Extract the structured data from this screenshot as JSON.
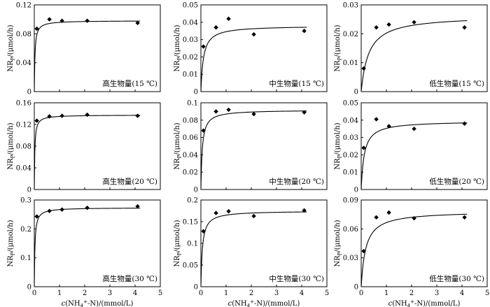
{
  "chart_data": [
    {
      "type": "scatter",
      "label": "高生物量(15 ℃)",
      "ylabel": "NRP/(μmol/h)",
      "xlabel": "",
      "xlim": [
        0,
        5
      ],
      "ylim": [
        0,
        0.12
      ],
      "yticks": [
        "0",
        "0.04",
        "0.08",
        "0.12"
      ],
      "xticks": [
        "0",
        "1",
        "2",
        "3",
        "4",
        "5"
      ],
      "points": [
        [
          0.1,
          0.087
        ],
        [
          0.6,
          0.1
        ],
        [
          1.1,
          0.098
        ],
        [
          2.1,
          0.098
        ],
        [
          4.1,
          0.095
        ]
      ],
      "fit": {
        "vmax": 0.0982,
        "km": 0.025
      }
    },
    {
      "type": "scatter",
      "label": "中生物量(15 ℃)",
      "ylabel": "NRP/(μmol/h)",
      "xlabel": "",
      "xlim": [
        0,
        5
      ],
      "ylim": [
        0,
        0.05
      ],
      "yticks": [
        "0",
        "0.01",
        "0.02",
        "0.03",
        "0.04",
        "0.05"
      ],
      "xticks": [
        "0",
        "1",
        "2",
        "3",
        "4",
        "5"
      ],
      "points": [
        [
          0.1,
          0.026
        ],
        [
          0.6,
          0.037
        ],
        [
          1.1,
          0.042
        ],
        [
          2.1,
          0.033
        ],
        [
          4.1,
          0.035
        ]
      ],
      "fit": {
        "vmax": 0.038,
        "km": 0.1
      }
    },
    {
      "type": "scatter",
      "label": "低生物量(15 ℃)",
      "ylabel": "NRP/(μmol/h)",
      "xlabel": "",
      "xlim": [
        0,
        5
      ],
      "ylim": [
        0,
        0.03
      ],
      "yticks": [
        "0",
        "0.01",
        "0.02",
        "0.03"
      ],
      "xticks": [
        "0",
        "1",
        "2",
        "3",
        "4",
        "5"
      ],
      "points": [
        [
          0.1,
          0.008
        ],
        [
          0.6,
          0.0222
        ],
        [
          1.1,
          0.0232
        ],
        [
          2.1,
          0.024
        ],
        [
          4.1,
          0.0222
        ]
      ],
      "fit": {
        "vmax": 0.0263,
        "km": 0.3
      }
    },
    {
      "type": "scatter",
      "label": "高生物量(20 ℃)",
      "ylabel": "NRP/(μmol/h)",
      "xlabel": "",
      "xlim": [
        0,
        5
      ],
      "ylim": [
        0,
        0.16
      ],
      "yticks": [
        "0",
        "0.04",
        "0.08",
        "0.12",
        "0.16"
      ],
      "xticks": [
        "0",
        "1",
        "2",
        "3",
        "4",
        "5"
      ],
      "points": [
        [
          0.1,
          0.127
        ],
        [
          0.6,
          0.135
        ],
        [
          1.1,
          0.136
        ],
        [
          2.1,
          0.138
        ],
        [
          4.1,
          0.136
        ]
      ],
      "fit": {
        "vmax": 0.1375,
        "km": 0.02
      }
    },
    {
      "type": "scatter",
      "label": "中生物量(20 ℃)",
      "ylabel": "NRP/(μmol/h)",
      "xlabel": "",
      "xlim": [
        0,
        5
      ],
      "ylim": [
        0,
        0.1
      ],
      "yticks": [
        "0",
        "0.02",
        "0.04",
        "0.06",
        "0.08",
        "0.1"
      ],
      "xticks": [
        "0",
        "1",
        "2",
        "3",
        "4",
        "5"
      ],
      "points": [
        [
          0.1,
          0.068
        ],
        [
          0.6,
          0.09
        ],
        [
          1.1,
          0.092
        ],
        [
          2.1,
          0.087
        ],
        [
          4.1,
          0.089
        ]
      ],
      "fit": {
        "vmax": 0.0918,
        "km": 0.055
      }
    },
    {
      "type": "scatter",
      "label": "低生物量(20 ℃)",
      "ylabel": "NRP/(μmol/h)",
      "xlabel": "",
      "xlim": [
        0,
        5
      ],
      "ylim": [
        0,
        0.05
      ],
      "yticks": [
        "0",
        "0.01",
        "0.02",
        "0.03",
        "0.04",
        "0.05"
      ],
      "xticks": [
        "0",
        "1",
        "2",
        "3",
        "4",
        "5"
      ],
      "points": [
        [
          0.1,
          0.024
        ],
        [
          0.6,
          0.0405
        ],
        [
          1.1,
          0.0365
        ],
        [
          2.1,
          0.035
        ],
        [
          4.1,
          0.038
        ]
      ],
      "fit": {
        "vmax": 0.0395,
        "km": 0.12
      }
    },
    {
      "type": "scatter",
      "label": "高生物量(30 ℃)",
      "ylabel": "NRP/(μmol/h)",
      "xlabel": "c(NH4+-N)/(mmol/L)",
      "xlim": [
        0,
        5
      ],
      "ylim": [
        0,
        0.3
      ],
      "yticks": [
        "0",
        "0.1",
        "0.2",
        "0.3"
      ],
      "xticks": [
        "0",
        "1",
        "2",
        "3",
        "4",
        "5"
      ],
      "points": [
        [
          0.1,
          0.243
        ],
        [
          0.6,
          0.262
        ],
        [
          1.1,
          0.267
        ],
        [
          2.1,
          0.273
        ],
        [
          4.1,
          0.278
        ]
      ],
      "fit": {
        "vmax": 0.2735,
        "km": 0.025
      }
    },
    {
      "type": "scatter",
      "label": "中生物量(30 ℃)",
      "ylabel": "NRP/(μmol/h)",
      "xlabel": "c(NH4+-N)/(mmol/L)",
      "xlim": [
        0,
        5
      ],
      "ylim": [
        0,
        0.2
      ],
      "yticks": [
        "0",
        "0.05",
        "0.1",
        "0.15",
        "0.2"
      ],
      "xticks": [
        "0",
        "1",
        "2",
        "3",
        "4",
        "5"
      ],
      "points": [
        [
          0.1,
          0.128
        ],
        [
          0.6,
          0.17
        ],
        [
          1.1,
          0.174
        ],
        [
          2.1,
          0.163
        ],
        [
          4.1,
          0.176
        ]
      ],
      "fit": {
        "vmax": 0.175,
        "km": 0.06
      }
    },
    {
      "type": "scatter",
      "label": "低生物量(30 ℃)",
      "ylabel": "NRP/(μmol/h)",
      "xlabel": "c(NH4+-N)/(mmol/L)",
      "xlim": [
        0,
        5
      ],
      "ylim": [
        0,
        0.09
      ],
      "yticks": [
        "0",
        "0.03",
        "0.06",
        "0.09"
      ],
      "xticks": [
        "0",
        "1",
        "2",
        "3",
        "4",
        "5"
      ],
      "points": [
        [
          0.1,
          0.037
        ],
        [
          0.6,
          0.072
        ],
        [
          1.1,
          0.077
        ],
        [
          2.1,
          0.071
        ],
        [
          4.1,
          0.072
        ]
      ],
      "fit": {
        "vmax": 0.0785,
        "km": 0.18
      }
    }
  ]
}
